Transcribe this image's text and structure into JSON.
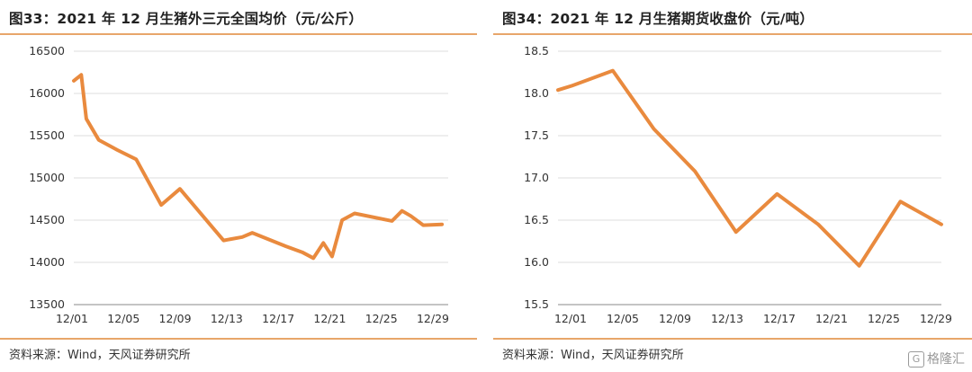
{
  "chart_data": [
    {
      "type": "line",
      "title": "图33：2021 年 12 月生猪外三元全国均价（元/公斤）",
      "ylim": [
        13500,
        16500
      ],
      "yticks": [
        "13500",
        "14000",
        "14500",
        "15000",
        "15500",
        "16000",
        "16500"
      ],
      "xticks": [
        "12/01",
        "12/05",
        "12/09",
        "12/13",
        "12/17",
        "12/21",
        "12/25",
        "12/29"
      ],
      "x_day_range": [
        1,
        31
      ],
      "grid": true,
      "color": "#e98a3e",
      "series": [
        {
          "x": [
            1,
            1.6,
            2,
            3,
            4.5,
            6,
            8,
            9.5,
            13,
            14.5,
            15.3,
            18,
            19.3,
            20.2,
            21,
            21.7,
            22.5,
            23.5,
            26.5,
            27.3,
            28,
            29,
            30.5
          ],
          "values": [
            16150,
            16220,
            15700,
            15450,
            15330,
            15220,
            14680,
            14870,
            14260,
            14300,
            14350,
            14190,
            14120,
            14050,
            14230,
            14070,
            14500,
            14580,
            14490,
            14610,
            14550,
            14440,
            14450
          ]
        }
      ],
      "source": "资料来源：Wind，天风证券研究所"
    },
    {
      "type": "line",
      "title": "图34：2021 年 12 月生猪期货收盘价（元/吨）",
      "ylim": [
        15.5,
        18.5
      ],
      "yticks": [
        "15.5",
        "16.0",
        "16.5",
        "17.0",
        "17.5",
        "18.0",
        "18.5"
      ],
      "xticks": [
        "12/01",
        "12/05",
        "12/09",
        "12/13",
        "12/17",
        "12/21",
        "12/25",
        "12/29"
      ],
      "x_day_range": [
        1,
        29
      ],
      "grid": true,
      "color": "#e98a3e",
      "series": [
        {
          "x": [
            1,
            2,
            5,
            8,
            11,
            14,
            17,
            20,
            23,
            26,
            29
          ],
          "values": [
            18.04,
            18.09,
            18.27,
            17.58,
            17.08,
            16.36,
            16.81,
            16.45,
            15.96,
            16.72,
            16.45
          ]
        }
      ],
      "source": "资料来源：Wind，天风证券研究所"
    }
  ],
  "watermark": "格隆汇"
}
